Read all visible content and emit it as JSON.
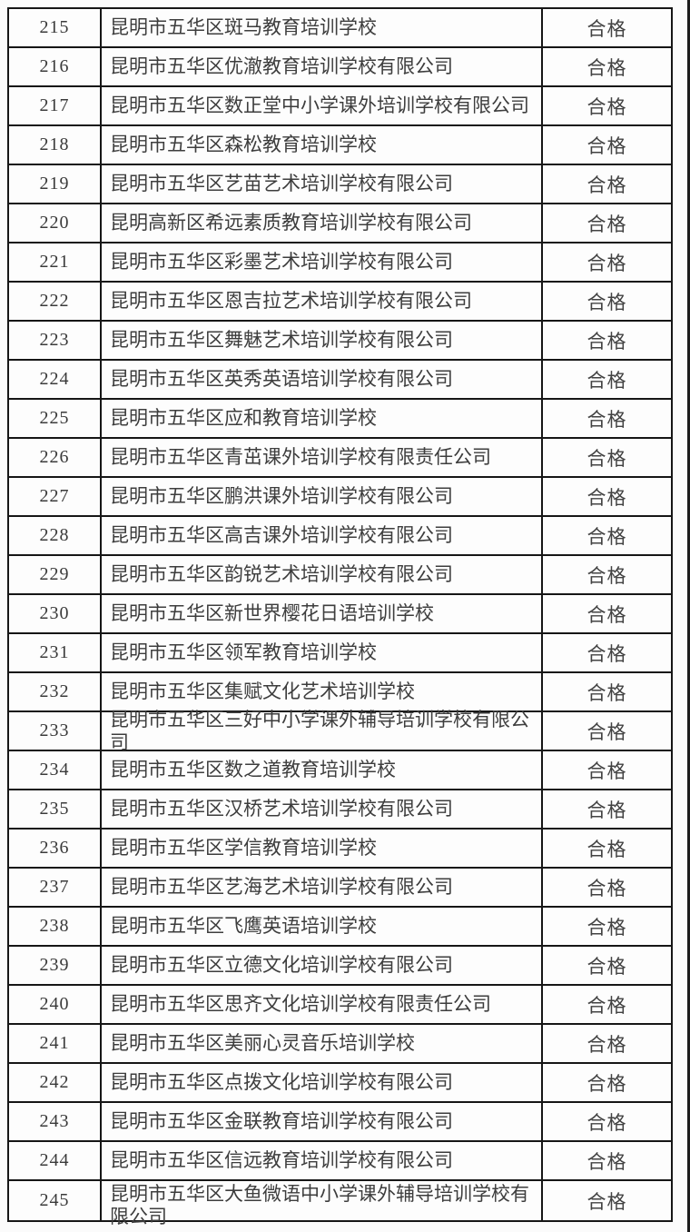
{
  "colors": {
    "table_border": "#161616",
    "page_background": "#fbfbfb",
    "cell_background": "#fdfdfd",
    "text": "#3d3d3d"
  },
  "table": {
    "pass_label": "合格",
    "rows": [
      {
        "no": "215",
        "name": "昆明市五华区斑马教育培训学校",
        "result": "合格"
      },
      {
        "no": "216",
        "name": "昆明市五华区优澈教育培训学校有限公司",
        "result": "合格"
      },
      {
        "no": "217",
        "name": "昆明市五华区数正堂中小学课外培训学校有限公司",
        "result": "合格"
      },
      {
        "no": "218",
        "name": "昆明市五华区森松教育培训学校",
        "result": "合格"
      },
      {
        "no": "219",
        "name": "昆明市五华区艺苗艺术培训学校有限公司",
        "result": "合格"
      },
      {
        "no": "220",
        "name": "昆明高新区希远素质教育培训学校有限公司",
        "result": "合格"
      },
      {
        "no": "221",
        "name": "昆明市五华区彩墨艺术培训学校有限公司",
        "result": "合格"
      },
      {
        "no": "222",
        "name": "昆明市五华区恩吉拉艺术培训学校有限公司",
        "result": "合格"
      },
      {
        "no": "223",
        "name": "昆明市五华区舞魅艺术培训学校有限公司",
        "result": "合格"
      },
      {
        "no": "224",
        "name": "昆明市五华区英秀英语培训学校有限公司",
        "result": "合格"
      },
      {
        "no": "225",
        "name": "昆明市五华区应和教育培训学校",
        "result": "合格"
      },
      {
        "no": "226",
        "name": "昆明市五华区青茁课外培训学校有限责任公司",
        "result": "合格"
      },
      {
        "no": "227",
        "name": "昆明市五华区鹏洪课外培训学校有限公司",
        "result": "合格"
      },
      {
        "no": "228",
        "name": "昆明市五华区高吉课外培训学校有限公司",
        "result": "合格"
      },
      {
        "no": "229",
        "name": "昆明市五华区韵锐艺术培训学校有限公司",
        "result": "合格"
      },
      {
        "no": "230",
        "name": "昆明市五华区新世界樱花日语培训学校",
        "result": "合格"
      },
      {
        "no": "231",
        "name": "昆明市五华区领军教育培训学校",
        "result": "合格"
      },
      {
        "no": "232",
        "name": "昆明市五华区集赋文化艺术培训学校",
        "result": "合格"
      },
      {
        "no": "233",
        "name": "昆明市五华区三好中小学课外辅导培训学校有限公司",
        "result": "合格"
      },
      {
        "no": "234",
        "name": "昆明市五华区数之道教育培训学校",
        "result": "合格"
      },
      {
        "no": "235",
        "name": "昆明市五华区汉桥艺术培训学校有限公司",
        "result": "合格"
      },
      {
        "no": "236",
        "name": "昆明市五华区学信教育培训学校",
        "result": "合格"
      },
      {
        "no": "237",
        "name": "昆明市五华区艺海艺术培训学校有限公司",
        "result": "合格"
      },
      {
        "no": "238",
        "name": "昆明市五华区飞鹰英语培训学校",
        "result": "合格"
      },
      {
        "no": "239",
        "name": "昆明市五华区立德文化培训学校有限公司",
        "result": "合格"
      },
      {
        "no": "240",
        "name": "昆明市五华区思齐文化培训学校有限责任公司",
        "result": "合格"
      },
      {
        "no": "241",
        "name": "昆明市五华区美丽心灵音乐培训学校",
        "result": "合格"
      },
      {
        "no": "242",
        "name": "昆明市五华区点拨文化培训学校有限公司",
        "result": "合格"
      },
      {
        "no": "243",
        "name": "昆明市五华区金联教育培训学校有限公司",
        "result": "合格"
      },
      {
        "no": "244",
        "name": "昆明市五华区信远教育培训学校有限公司",
        "result": "合格"
      },
      {
        "no": "245",
        "name": "昆明市五华区大鱼微语中小学课外辅导培训学校有限公司",
        "result": "合格"
      }
    ]
  }
}
